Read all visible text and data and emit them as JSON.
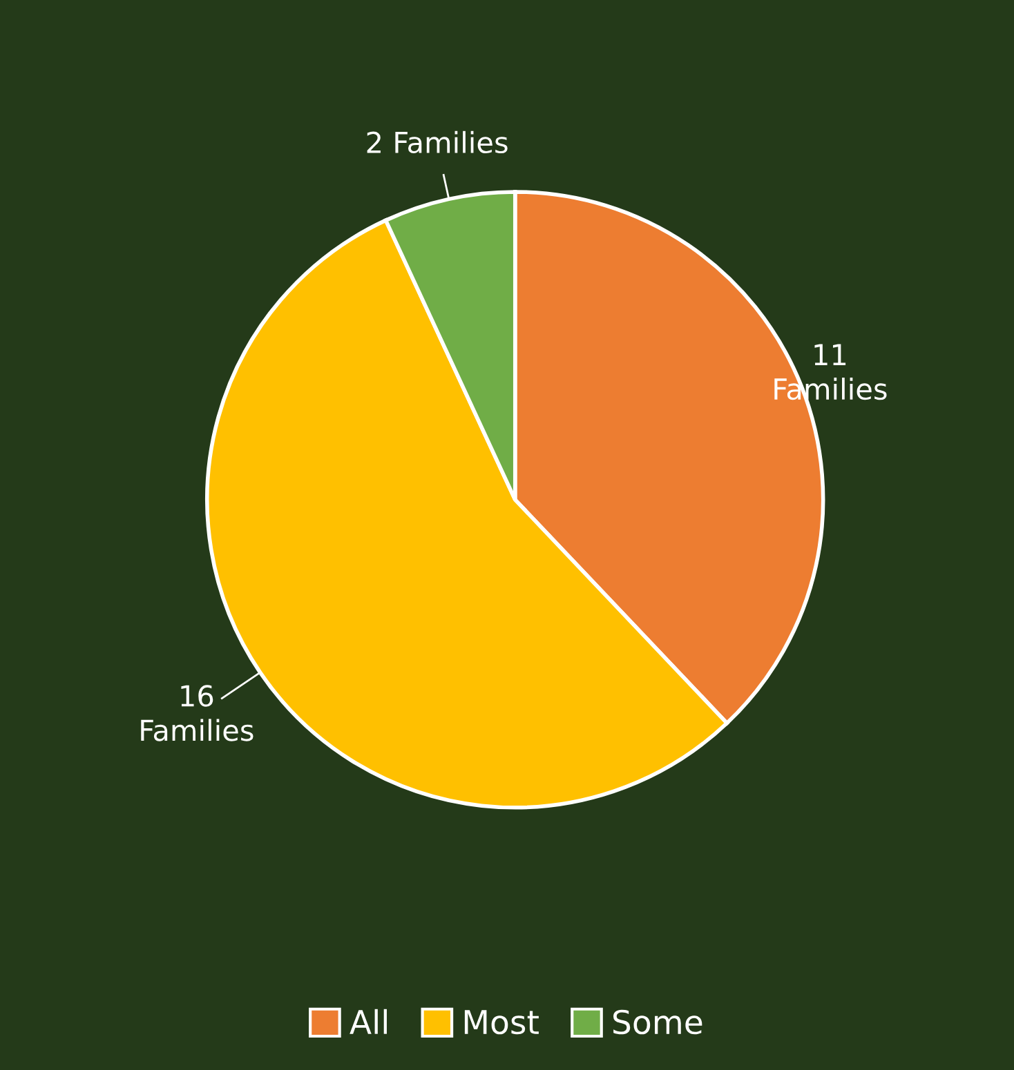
{
  "chart_data": {
    "type": "pie",
    "categories": [
      "All",
      "Most",
      "Some"
    ],
    "values": [
      11,
      16,
      2
    ],
    "colors": [
      "#ed7d31",
      "#ffc000",
      "#70ad47"
    ],
    "value_labels": [
      "11\nFamilies",
      "16\nFamilies",
      "2 Families"
    ],
    "legend": "bottom"
  }
}
